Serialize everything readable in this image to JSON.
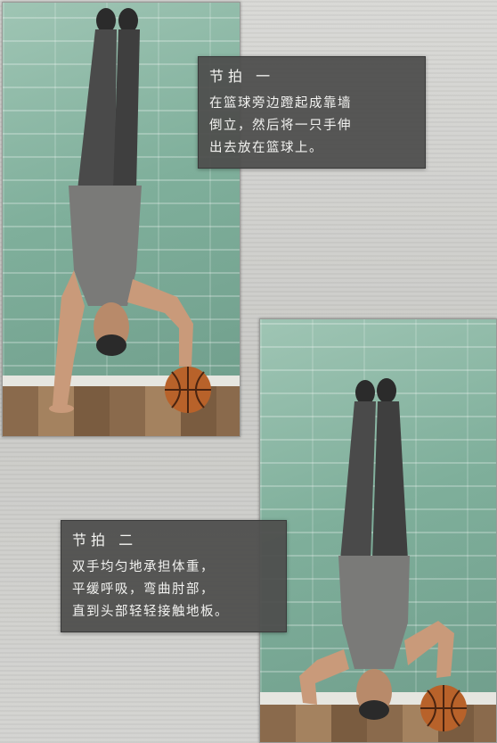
{
  "step1": {
    "title": "节拍 一",
    "lines": [
      "在篮球旁边蹬起成靠墙",
      "倒立，然后将一只手伸",
      "出去放在篮球上。"
    ]
  },
  "step2": {
    "title": "节拍 二",
    "lines": [
      "双手均匀地承担体重，",
      "平缓呼吸，弯曲肘部，",
      "直到头部轻轻接触地板。"
    ]
  },
  "colors": {
    "caption_bg": "#4e4e4c",
    "wall": "#8fbaa7",
    "floor": "#8a6a4c",
    "basketball": "#b8622a"
  }
}
